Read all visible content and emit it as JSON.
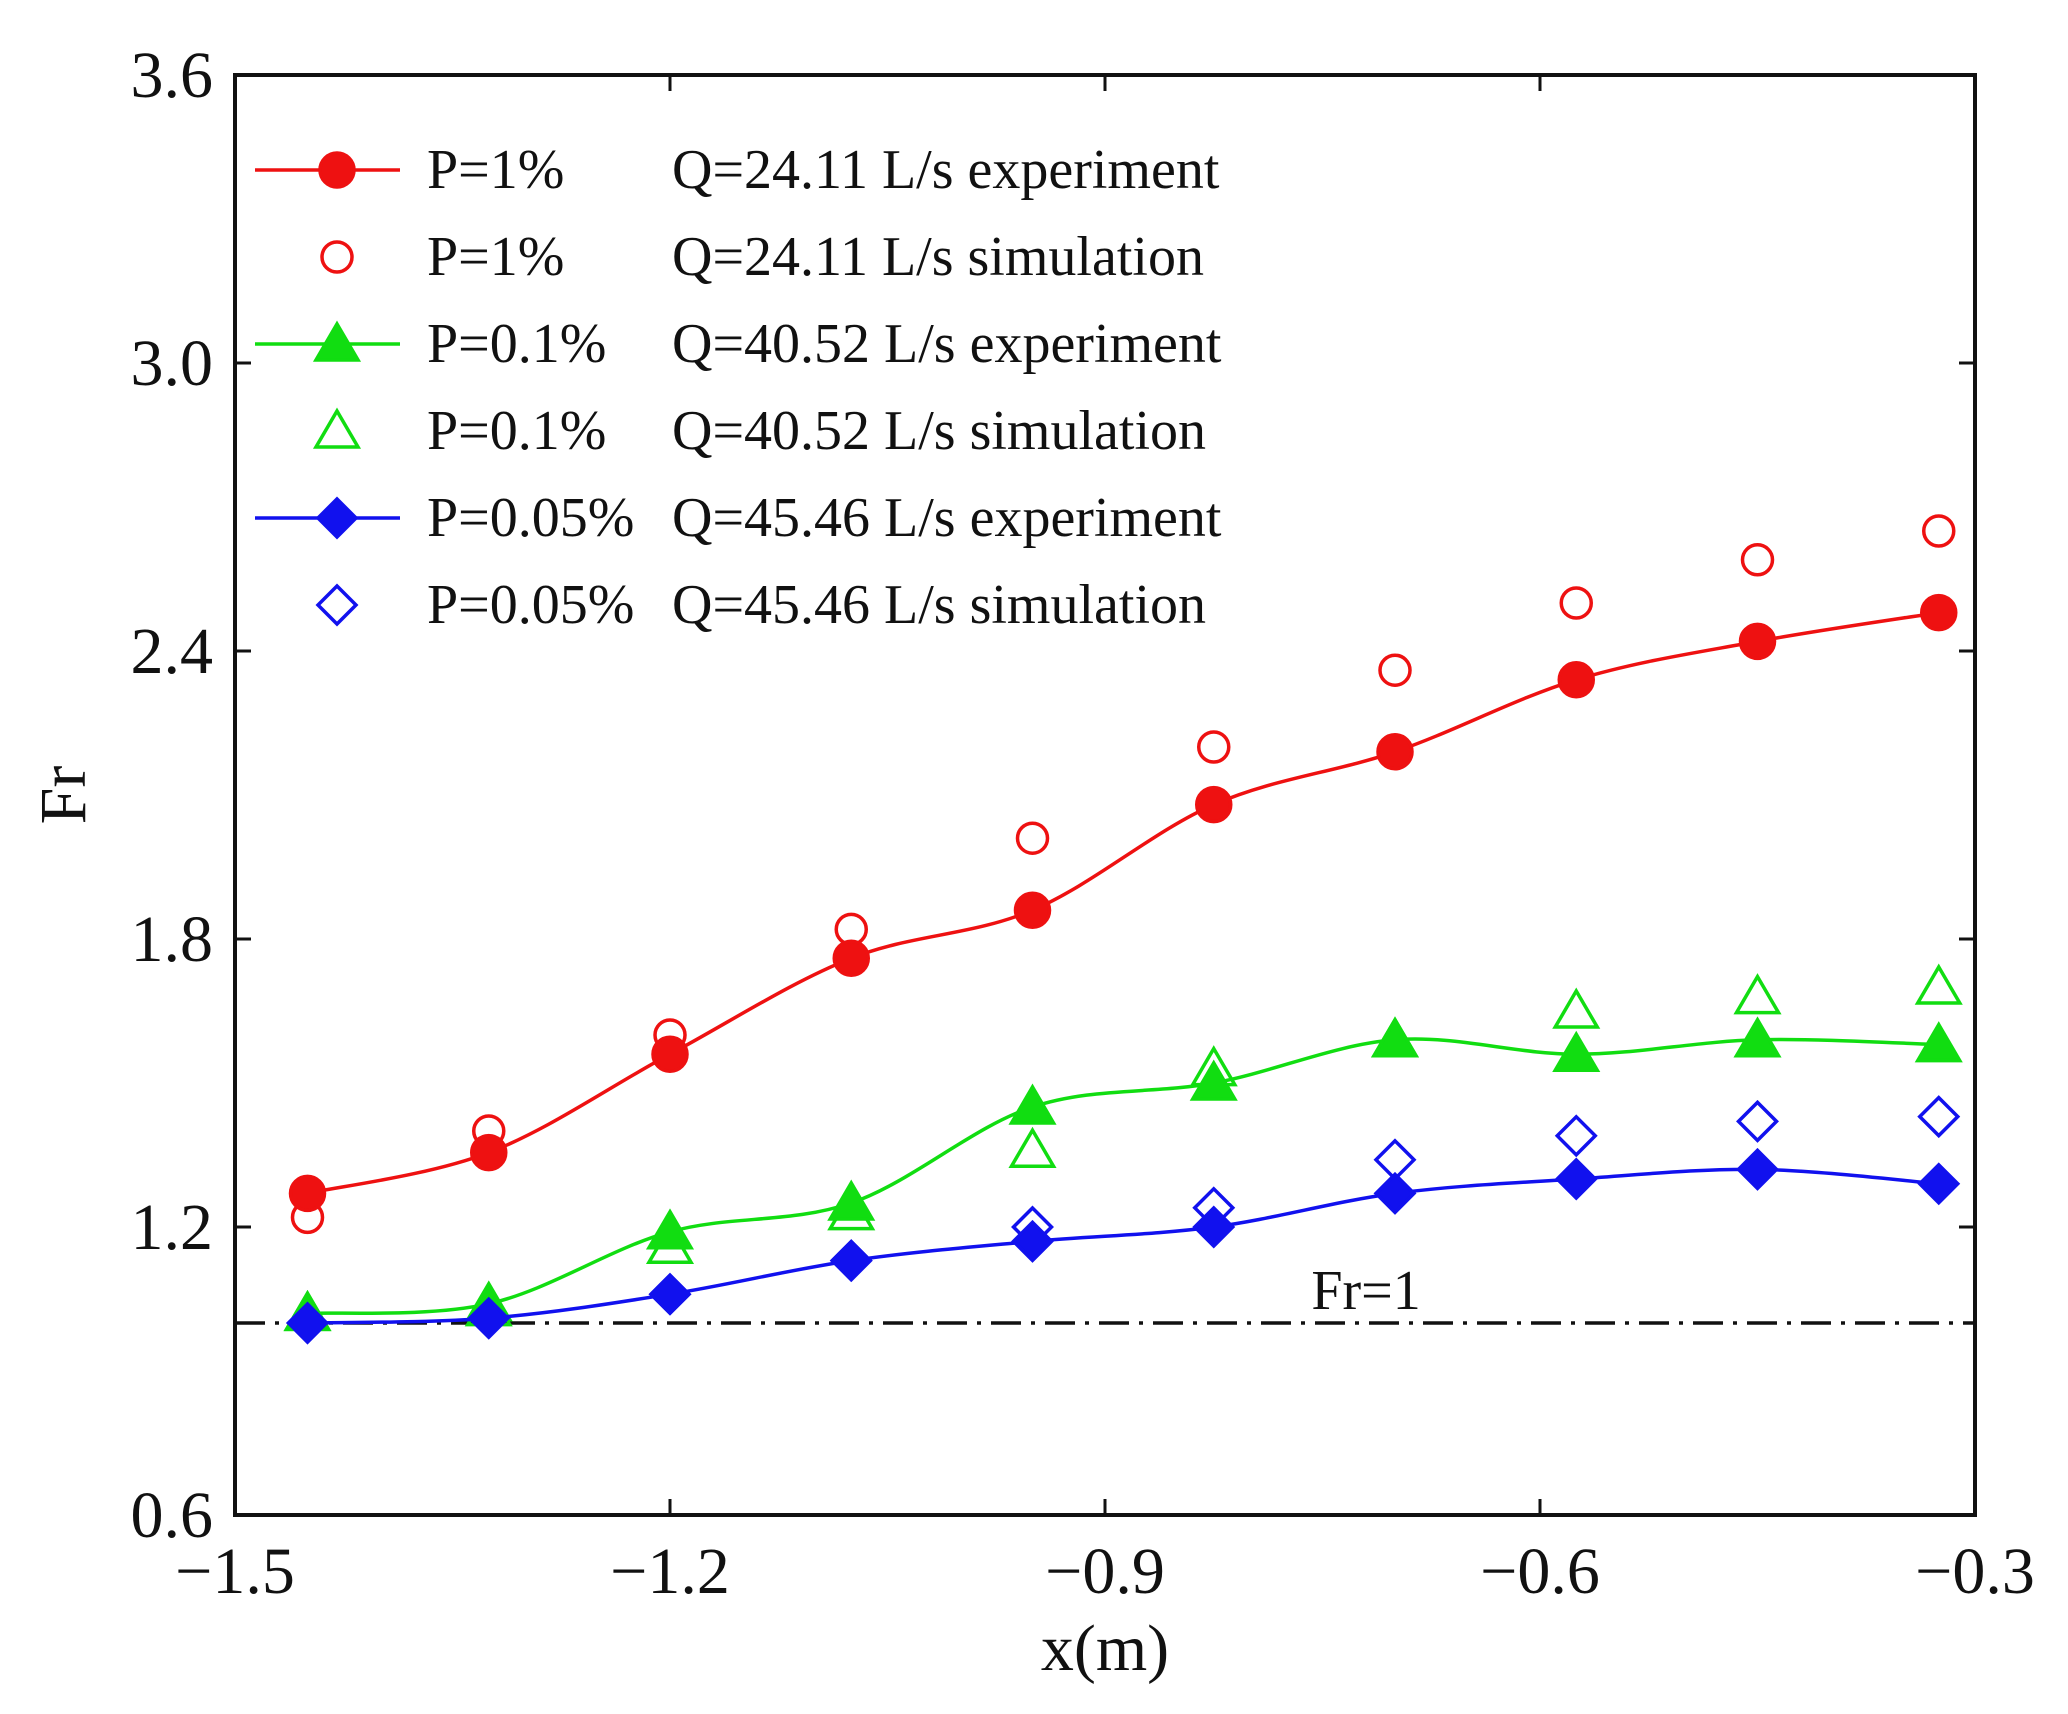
{
  "chart_data": {
    "type": "line",
    "title": "",
    "xlabel": "x(m)",
    "ylabel": "Fr",
    "xlim": [
      -1.5,
      -0.3
    ],
    "ylim": [
      0.6,
      3.6
    ],
    "xticks": [
      -1.5,
      -1.2,
      -0.9,
      -0.6,
      -0.3
    ],
    "xtick_labels": [
      "−1.5",
      "−1.2",
      "−0.9",
      "−0.6",
      "−0.3"
    ],
    "yticks": [
      0.6,
      1.2,
      1.8,
      2.4,
      3.0,
      3.6
    ],
    "ytick_labels": [
      "0.6",
      "1.2",
      "1.8",
      "2.4",
      "3.0",
      "3.6"
    ],
    "grid": false,
    "legend_position": "top-left",
    "x": [
      -1.45,
      -1.325,
      -1.2,
      -1.075,
      -0.95,
      -0.825,
      -0.7,
      -0.575,
      -0.45,
      -0.325
    ],
    "series": [
      {
        "name": "P=1% Q=24.11 L/s experiment",
        "legend_p": "P=1%",
        "legend_q": "Q=24.11 L/s experiment",
        "color": "#ee1111",
        "marker": "circle",
        "filled": true,
        "line": true,
        "values": [
          1.27,
          1.355,
          1.56,
          1.76,
          1.86,
          2.08,
          2.19,
          2.34,
          2.42,
          2.48
        ]
      },
      {
        "name": "P=1% Q=24.11 L/s simulation",
        "legend_p": "P=1%",
        "legend_q": "Q=24.11 L/s simulation",
        "color": "#ee1111",
        "marker": "circle",
        "filled": false,
        "line": false,
        "values": [
          1.22,
          1.4,
          1.6,
          1.82,
          2.01,
          2.2,
          2.36,
          2.5,
          2.59,
          2.65
        ]
      },
      {
        "name": "P=0.1% Q=40.52 L/s experiment",
        "legend_p": "P=0.1%",
        "legend_q": "Q=40.52 L/s experiment",
        "color": "#11dd11",
        "marker": "triangle",
        "filled": true,
        "line": true,
        "values": [
          1.02,
          1.04,
          1.19,
          1.25,
          1.45,
          1.5,
          1.59,
          1.56,
          1.59,
          1.58
        ]
      },
      {
        "name": "P=0.1% Q=40.52 L/s simulation",
        "legend_p": "P=0.1%",
        "legend_q": "Q=40.52 L/s simulation",
        "color": "#11dd11",
        "marker": "triangle",
        "filled": false,
        "line": false,
        "values": [
          1.02,
          1.03,
          1.16,
          1.23,
          1.36,
          1.53,
          1.59,
          1.65,
          1.68,
          1.7
        ]
      },
      {
        "name": "P=0.05% Q=45.46 L/s experiment",
        "legend_p": "P=0.05%",
        "legend_q": "Q=45.46 L/s experiment",
        "color": "#1111ee",
        "marker": "diamond",
        "filled": true,
        "line": true,
        "values": [
          1.0,
          1.01,
          1.06,
          1.13,
          1.17,
          1.2,
          1.27,
          1.3,
          1.32,
          1.29
        ]
      },
      {
        "name": "P=0.05% Q=45.46 L/s simulation",
        "legend_p": "P=0.05%",
        "legend_q": "Q=45.46 L/s simulation",
        "color": "#1111ee",
        "marker": "diamond",
        "filled": false,
        "line": false,
        "values": [
          1.0,
          1.01,
          1.06,
          1.13,
          1.2,
          1.24,
          1.34,
          1.39,
          1.42,
          1.43
        ]
      }
    ],
    "reference_line": {
      "y": 1.0,
      "label": "Fr=1",
      "style": "dash-dot",
      "color": "#111111"
    }
  }
}
